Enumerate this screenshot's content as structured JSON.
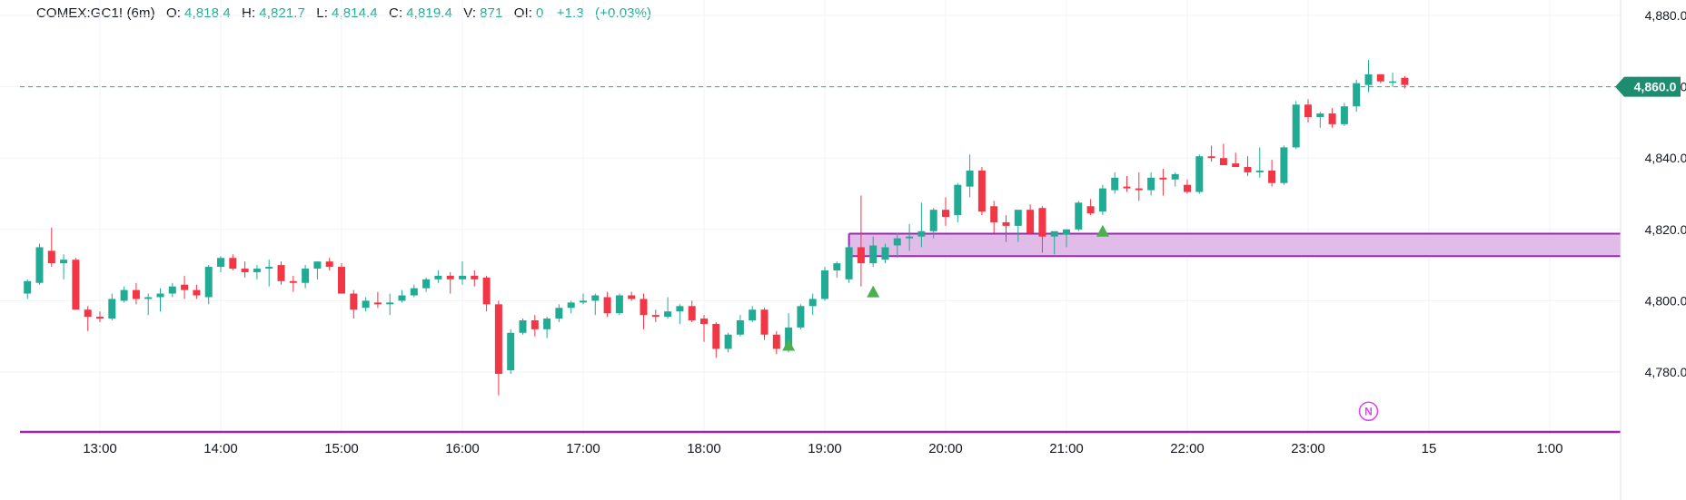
{
  "legend": {
    "symbol": "COMEX:GC1! (6m)",
    "open_label": "O:",
    "open": "4,818.4",
    "high_label": "H:",
    "high": "4,821.7",
    "low_label": "L:",
    "low": "4,814.4",
    "close_label": "C:",
    "close": "4,819.4",
    "volume_label": "V:",
    "volume": "871",
    "oi_label": "OI:",
    "oi": "0",
    "change": "+1.3",
    "change_pct": "(+0.03%)"
  },
  "colors": {
    "up": "#22ab94",
    "down": "#f23645",
    "zone_fill": "#dcb0e4",
    "zone_border": "#9c27b0",
    "signal": "#4caf50",
    "price_tag": "#1e8c6e",
    "grid": "#f0f3fa"
  },
  "price_tag": "4,860.0",
  "marker_label": "N",
  "chart_data": {
    "type": "candlestick",
    "y_ticks": [
      "4,880.0",
      "4,860.0",
      "4,840.0",
      "4,820.0",
      "4,800.0",
      "4,780.0"
    ],
    "y_tick_values": [
      4880,
      4860,
      4840,
      4820,
      4800,
      4780
    ],
    "ylim": [
      4763.5,
      4883.8
    ],
    "x_ticks": [
      "13:00",
      "14:00",
      "15:00",
      "16:00",
      "17:00",
      "18:00",
      "19:00",
      "20:00",
      "21:00",
      "22:00",
      "23:00",
      "15",
      "1:00"
    ],
    "x_tick_hours": [
      13,
      14,
      15,
      16,
      17,
      18,
      19,
      20,
      21,
      22,
      23,
      24,
      25
    ],
    "xlim_hours": [
      12.38,
      25.55
    ],
    "current_price": 4860.0,
    "demand_zone": {
      "low": 4812.5,
      "high": 4818.8,
      "start_hour": 19.2
    },
    "bottom_line": 4763.5,
    "signals": [
      {
        "hour": 18.7,
        "price": 4787.5
      },
      {
        "hour": 19.4,
        "price": 4802.5
      },
      {
        "hour": 21.3,
        "price": 4819.5
      }
    ],
    "marker": {
      "hour": 23.5,
      "price": 4769.0
    },
    "candles": [
      [
        12.4,
        4802.0,
        4806.0,
        4800.5,
        4805.5
      ],
      [
        12.5,
        4805.0,
        4816.0,
        4804.5,
        4815.0
      ],
      [
        12.6,
        4814.0,
        4820.5,
        4809.5,
        4810.5
      ],
      [
        12.7,
        4810.5,
        4813.0,
        4806.0,
        4811.5
      ],
      [
        12.8,
        4811.5,
        4812.0,
        4797.5,
        4797.5
      ],
      [
        12.9,
        4797.5,
        4798.5,
        4791.5,
        4795.5
      ],
      [
        13.0,
        4795.5,
        4797.0,
        4794.0,
        4795.0
      ],
      [
        13.1,
        4795.0,
        4802.0,
        4794.5,
        4800.5
      ],
      [
        13.2,
        4800.0,
        4804.0,
        4799.5,
        4803.0
      ],
      [
        13.3,
        4803.0,
        4805.0,
        4799.0,
        4800.5
      ],
      [
        13.4,
        4800.5,
        4802.0,
        4796.0,
        4801.0
      ],
      [
        13.5,
        4801.0,
        4803.5,
        4797.0,
        4802.0
      ],
      [
        13.6,
        4802.0,
        4805.0,
        4801.0,
        4804.0
      ],
      [
        13.7,
        4804.5,
        4807.0,
        4800.5,
        4803.0
      ],
      [
        13.8,
        4803.0,
        4804.5,
        4800.5,
        4801.5
      ],
      [
        13.9,
        4801.0,
        4810.0,
        4799.0,
        4809.5
      ],
      [
        14.0,
        4809.5,
        4812.5,
        4808.0,
        4812.0
      ],
      [
        14.1,
        4812.0,
        4813.0,
        4808.5,
        4809.0
      ],
      [
        14.2,
        4809.0,
        4811.0,
        4806.5,
        4808.0
      ],
      [
        14.3,
        4808.0,
        4810.0,
        4806.0,
        4809.0
      ],
      [
        14.4,
        4809.0,
        4811.5,
        4804.0,
        4809.5
      ],
      [
        14.5,
        4810.0,
        4811.0,
        4804.5,
        4805.5
      ],
      [
        14.6,
        4805.5,
        4807.0,
        4802.5,
        4805.0
      ],
      [
        14.7,
        4805.0,
        4810.0,
        4803.5,
        4809.0
      ],
      [
        14.8,
        4809.0,
        4811.0,
        4806.0,
        4811.0
      ],
      [
        14.9,
        4811.0,
        4812.0,
        4808.5,
        4809.5
      ],
      [
        15.0,
        4809.5,
        4810.5,
        4802.0,
        4802.0
      ],
      [
        15.1,
        4802.0,
        4803.0,
        4795.0,
        4797.5
      ],
      [
        15.2,
        4798.0,
        4801.0,
        4797.0,
        4800.0
      ],
      [
        15.3,
        4799.5,
        4802.5,
        4798.0,
        4799.0
      ],
      [
        15.4,
        4799.0,
        4802.0,
        4796.0,
        4799.5
      ],
      [
        15.5,
        4800.0,
        4803.0,
        4799.5,
        4801.5
      ],
      [
        15.6,
        4801.5,
        4804.5,
        4801.0,
        4803.5
      ],
      [
        15.7,
        4803.5,
        4806.5,
        4802.5,
        4806.0
      ],
      [
        15.8,
        4806.0,
        4808.5,
        4805.0,
        4807.0
      ],
      [
        15.9,
        4807.0,
        4808.0,
        4802.0,
        4806.0
      ],
      [
        16.0,
        4806.0,
        4811.0,
        4804.5,
        4807.0
      ],
      [
        16.1,
        4807.0,
        4808.5,
        4804.0,
        4806.0
      ],
      [
        16.2,
        4806.5,
        4807.0,
        4797.0,
        4799.0
      ],
      [
        16.3,
        4799.0,
        4800.0,
        4773.5,
        4779.5
      ],
      [
        16.4,
        4780.5,
        4792.0,
        4779.5,
        4791.0
      ],
      [
        16.5,
        4791.0,
        4795.0,
        4790.5,
        4794.5
      ],
      [
        16.6,
        4794.5,
        4796.0,
        4790.0,
        4792.0
      ],
      [
        16.7,
        4792.0,
        4795.5,
        4789.5,
        4795.0
      ],
      [
        16.8,
        4795.0,
        4799.0,
        4794.0,
        4798.0
      ],
      [
        16.9,
        4798.0,
        4800.0,
        4796.5,
        4799.5
      ],
      [
        17.0,
        4799.5,
        4802.0,
        4799.0,
        4800.0
      ],
      [
        17.1,
        4800.0,
        4802.0,
        4796.0,
        4801.5
      ],
      [
        17.2,
        4801.0,
        4802.5,
        4795.5,
        4796.5
      ],
      [
        17.3,
        4796.5,
        4802.0,
        4796.0,
        4801.5
      ],
      [
        17.4,
        4801.5,
        4802.5,
        4800.0,
        4800.5
      ],
      [
        17.5,
        4800.5,
        4802.0,
        4792.0,
        4796.0
      ],
      [
        17.6,
        4796.0,
        4797.5,
        4794.0,
        4795.5
      ],
      [
        17.7,
        4795.5,
        4801.0,
        4795.0,
        4797.0
      ],
      [
        17.8,
        4797.0,
        4799.0,
        4793.5,
        4798.5
      ],
      [
        17.9,
        4798.5,
        4800.0,
        4794.0,
        4794.5
      ],
      [
        18.0,
        4795.0,
        4796.0,
        4788.5,
        4793.5
      ],
      [
        18.1,
        4793.5,
        4794.0,
        4784.0,
        4786.5
      ],
      [
        18.2,
        4786.5,
        4791.0,
        4785.5,
        4790.5
      ],
      [
        18.3,
        4790.5,
        4796.0,
        4790.0,
        4794.5
      ],
      [
        18.4,
        4794.5,
        4798.5,
        4794.0,
        4797.5
      ],
      [
        18.5,
        4797.5,
        4798.0,
        4789.0,
        4790.5
      ],
      [
        18.6,
        4790.5,
        4791.5,
        4785.0,
        4786.5
      ],
      [
        18.7,
        4786.0,
        4796.5,
        4785.5,
        4792.5
      ],
      [
        18.8,
        4792.5,
        4799.0,
        4792.0,
        4798.5
      ],
      [
        18.9,
        4798.5,
        4802.0,
        4796.0,
        4800.5
      ],
      [
        19.0,
        4800.5,
        4809.5,
        4800.0,
        4808.5
      ],
      [
        19.1,
        4808.5,
        4811.0,
        4806.5,
        4810.5
      ],
      [
        19.2,
        4806.0,
        4815.5,
        4805.0,
        4815.0
      ],
      [
        19.3,
        4815.0,
        4829.5,
        4804.0,
        4810.5
      ],
      [
        19.4,
        4810.5,
        4818.0,
        4809.5,
        4815.5
      ],
      [
        19.5,
        4811.5,
        4816.0,
        4810.5,
        4815.0
      ],
      [
        19.6,
        4815.5,
        4819.0,
        4812.0,
        4817.5
      ],
      [
        19.7,
        4817.5,
        4821.5,
        4814.0,
        4818.0
      ],
      [
        19.8,
        4818.0,
        4827.5,
        4815.0,
        4819.5
      ],
      [
        19.9,
        4819.5,
        4826.0,
        4817.5,
        4825.5
      ],
      [
        20.0,
        4825.5,
        4829.0,
        4821.0,
        4823.5
      ],
      [
        20.1,
        4824.0,
        4833.0,
        4822.0,
        4832.5
      ],
      [
        20.2,
        4832.0,
        4841.0,
        4829.0,
        4836.5
      ],
      [
        20.3,
        4836.5,
        4837.5,
        4824.0,
        4825.0
      ],
      [
        20.4,
        4826.5,
        4828.0,
        4819.0,
        4822.0
      ],
      [
        20.5,
        4822.0,
        4824.0,
        4816.5,
        4821.0
      ],
      [
        20.6,
        4821.0,
        4824.5,
        4816.5,
        4825.5
      ],
      [
        20.7,
        4825.5,
        4827.0,
        4818.5,
        4819.0
      ],
      [
        20.8,
        4826.0,
        4826.5,
        4813.5,
        4818.0
      ],
      [
        20.9,
        4818.0,
        4819.0,
        4813.0,
        4819.5
      ],
      [
        21.0,
        4818.5,
        4820.0,
        4815.0,
        4820.0
      ],
      [
        21.1,
        4820.0,
        4828.0,
        4819.5,
        4827.5
      ],
      [
        21.2,
        4826.5,
        4828.5,
        4824.0,
        4824.5
      ],
      [
        21.3,
        4825.0,
        4832.5,
        4824.0,
        4831.5
      ],
      [
        21.4,
        4831.0,
        4836.0,
        4830.0,
        4834.5
      ],
      [
        21.5,
        4832.0,
        4835.0,
        4830.5,
        4831.5
      ],
      [
        21.6,
        4831.5,
        4836.0,
        4828.0,
        4831.0
      ],
      [
        21.7,
        4831.0,
        4836.0,
        4829.5,
        4834.5
      ],
      [
        21.8,
        4834.5,
        4837.0,
        4829.5,
        4834.0
      ],
      [
        21.9,
        4834.0,
        4836.0,
        4832.0,
        4835.5
      ],
      [
        22.0,
        4832.5,
        4834.0,
        4830.0,
        4830.5
      ],
      [
        22.1,
        4830.5,
        4841.0,
        4830.0,
        4840.5
      ],
      [
        22.2,
        4840.5,
        4843.5,
        4839.0,
        4840.0
      ],
      [
        22.3,
        4840.0,
        4844.0,
        4838.0,
        4838.0
      ],
      [
        22.4,
        4838.5,
        4841.5,
        4837.5,
        4837.5
      ],
      [
        22.5,
        4837.5,
        4840.5,
        4835.0,
        4836.0
      ],
      [
        22.6,
        4836.0,
        4843.0,
        4834.5,
        4836.5
      ],
      [
        22.7,
        4836.5,
        4839.5,
        4832.0,
        4833.0
      ],
      [
        22.8,
        4833.0,
        4843.5,
        4832.5,
        4843.0
      ],
      [
        22.9,
        4843.0,
        4856.0,
        4842.5,
        4855.0
      ],
      [
        23.0,
        4855.0,
        4856.5,
        4850.0,
        4851.5
      ],
      [
        23.1,
        4851.5,
        4853.0,
        4848.5,
        4852.5
      ],
      [
        23.2,
        4852.5,
        4854.0,
        4848.5,
        4849.5
      ],
      [
        23.3,
        4849.5,
        4855.5,
        4849.0,
        4854.5
      ],
      [
        23.4,
        4854.5,
        4862.0,
        4853.0,
        4861.0
      ],
      [
        23.5,
        4860.5,
        4867.5,
        4858.5,
        4863.5
      ],
      [
        23.6,
        4863.5,
        4863.5,
        4861.0,
        4861.5
      ],
      [
        23.7,
        4861.5,
        4864.0,
        4860.0,
        4861.5
      ],
      [
        23.8,
        4862.5,
        4863.0,
        4859.5,
        4860.5
      ]
    ]
  }
}
